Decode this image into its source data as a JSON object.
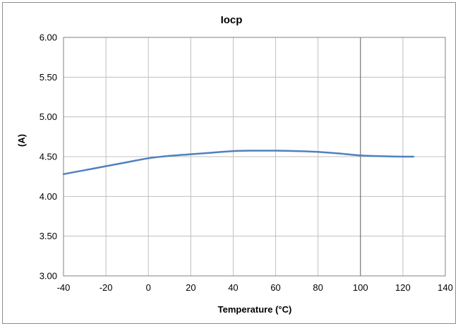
{
  "chart_data": {
    "type": "line",
    "title": "Iocp",
    "xlabel": "Temperature (°C)",
    "ylabel": "(A)",
    "xlim": [
      -40,
      140
    ],
    "ylim": [
      3.0,
      6.0
    ],
    "x_ticks": [
      -40,
      -20,
      0,
      20,
      40,
      60,
      80,
      100,
      120,
      140
    ],
    "y_ticks": [
      "3.00",
      "3.50",
      "4.00",
      "4.50",
      "5.00",
      "5.50",
      "6.00"
    ],
    "grid": true,
    "legend": "none",
    "line_color": "#4f81bd",
    "series": [
      {
        "x": [
          -40,
          -30,
          -20,
          -10,
          0,
          10,
          20,
          30,
          40,
          50,
          60,
          70,
          80,
          90,
          100,
          110,
          120,
          125
        ],
        "values": [
          4.28,
          4.33,
          4.38,
          4.43,
          4.48,
          4.51,
          4.53,
          4.55,
          4.57,
          4.575,
          4.575,
          4.57,
          4.56,
          4.54,
          4.515,
          4.505,
          4.5,
          4.5
        ]
      }
    ]
  }
}
